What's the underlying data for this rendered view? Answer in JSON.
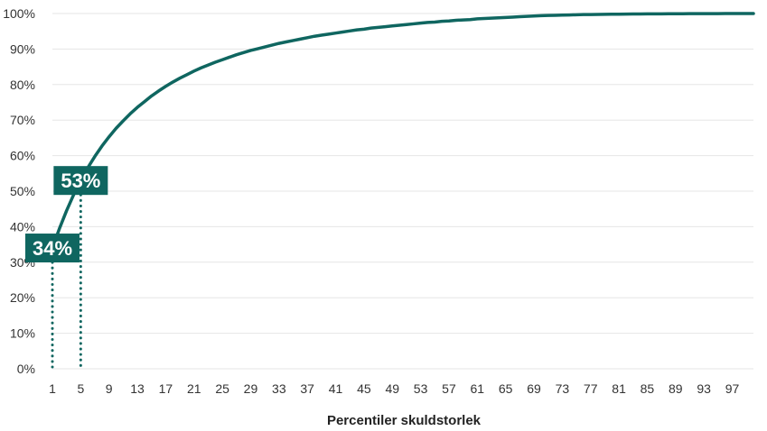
{
  "chart_data": {
    "type": "line",
    "title": "",
    "xlabel": "Percentiler skuldstorlek",
    "ylabel": "",
    "xlim": [
      1,
      100
    ],
    "ylim": [
      0,
      100
    ],
    "y_ticks": [
      0,
      10,
      20,
      30,
      40,
      50,
      60,
      70,
      80,
      90,
      100
    ],
    "y_tick_labels": [
      "0%",
      "10%",
      "20%",
      "30%",
      "40%",
      "50%",
      "60%",
      "70%",
      "80%",
      "90%",
      "100%"
    ],
    "x_ticks": [
      1,
      5,
      9,
      13,
      17,
      21,
      25,
      29,
      33,
      37,
      41,
      45,
      49,
      53,
      57,
      61,
      65,
      69,
      73,
      77,
      81,
      85,
      89,
      93,
      97
    ],
    "x_tick_labels": [
      "1",
      "5",
      "9",
      "13",
      "17",
      "21",
      "25",
      "29",
      "33",
      "37",
      "41",
      "45",
      "49",
      "53",
      "57",
      "61",
      "65",
      "69",
      "73",
      "77",
      "81",
      "85",
      "89",
      "93",
      "97"
    ],
    "grid": true,
    "line_color": "#0f6660",
    "x": [
      1,
      2,
      3,
      4,
      5,
      6,
      7,
      8,
      9,
      10,
      11,
      12,
      13,
      14,
      15,
      16,
      17,
      18,
      19,
      20,
      21,
      22,
      23,
      24,
      25,
      26,
      27,
      28,
      29,
      30,
      31,
      32,
      33,
      34,
      35,
      36,
      37,
      38,
      39,
      40,
      41,
      42,
      43,
      44,
      45,
      46,
      47,
      48,
      49,
      50,
      51,
      52,
      53,
      54,
      55,
      56,
      57,
      58,
      59,
      60,
      61,
      62,
      63,
      64,
      65,
      66,
      67,
      68,
      69,
      70,
      71,
      72,
      73,
      74,
      75,
      76,
      77,
      78,
      79,
      80,
      81,
      82,
      83,
      84,
      85,
      86,
      87,
      88,
      89,
      90,
      91,
      92,
      93,
      94,
      95,
      96,
      97,
      98,
      99,
      100
    ],
    "series": [
      {
        "values": [
          34.0,
          39.5,
          44.5,
          49.0,
          53.0,
          56.6,
          59.8,
          62.7,
          65.3,
          67.7,
          69.8,
          71.8,
          73.6,
          75.2,
          76.8,
          78.2,
          79.5,
          80.7,
          81.8,
          82.8,
          83.8,
          84.7,
          85.5,
          86.3,
          87.0,
          87.7,
          88.4,
          89.0,
          89.6,
          90.1,
          90.6,
          91.1,
          91.6,
          92.0,
          92.4,
          92.8,
          93.2,
          93.6,
          93.9,
          94.2,
          94.5,
          94.8,
          95.1,
          95.4,
          95.6,
          95.9,
          96.1,
          96.3,
          96.5,
          96.7,
          96.9,
          97.1,
          97.3,
          97.5,
          97.6,
          97.8,
          97.9,
          98.1,
          98.2,
          98.3,
          98.5,
          98.6,
          98.7,
          98.8,
          98.9,
          99.0,
          99.1,
          99.2,
          99.3,
          99.4,
          99.45,
          99.5,
          99.55,
          99.6,
          99.65,
          99.7,
          99.72,
          99.75,
          99.78,
          99.8,
          99.82,
          99.84,
          99.86,
          99.88,
          99.9,
          99.91,
          99.92,
          99.93,
          99.94,
          99.95,
          99.96,
          99.97,
          99.97,
          99.98,
          99.98,
          99.99,
          99.99,
          100.0,
          100.0,
          100.0
        ]
      }
    ],
    "annotations": [
      {
        "x": 1,
        "y": 34,
        "text": "34%"
      },
      {
        "x": 5,
        "y": 53,
        "text": "53%"
      }
    ]
  }
}
